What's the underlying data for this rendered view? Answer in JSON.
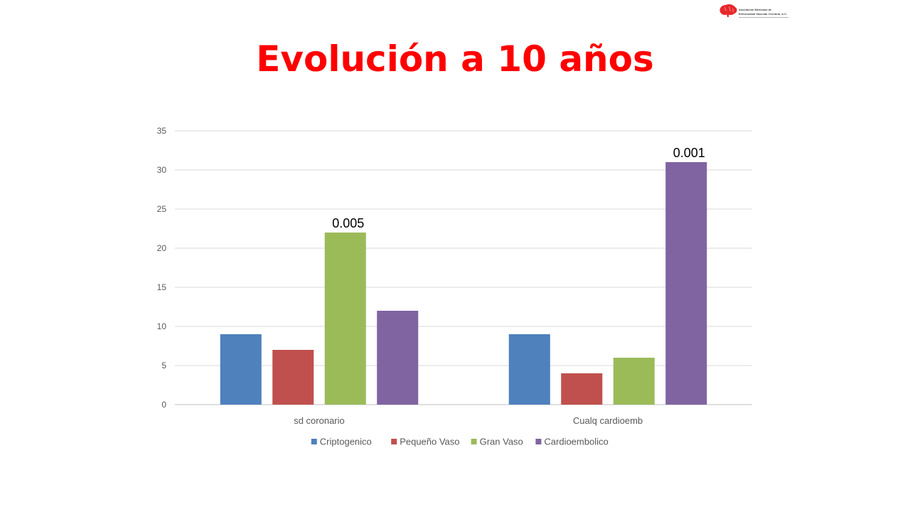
{
  "slide": {
    "title": "Evolución a 10 años",
    "title_color": "#ff0000"
  },
  "logo": {
    "icon": "brain-icon",
    "line1": "Asociación Mexicana de",
    "line2": "Enfermedad Vascular Cerebral, A.C.",
    "color": "#e8282b"
  },
  "chart_data": {
    "type": "bar",
    "title": "",
    "xlabel": "",
    "ylabel": "",
    "categories": [
      "sd coronario",
      "Cualq cardioemb"
    ],
    "series": [
      {
        "name": "Criptogenico",
        "values": [
          9,
          9
        ],
        "color": "#4f81bd"
      },
      {
        "name": "Pequeño Vaso",
        "values": [
          7,
          4
        ],
        "color": "#c0504d"
      },
      {
        "name": "Gran Vaso",
        "values": [
          22,
          6
        ],
        "color": "#9bbb59"
      },
      {
        "name": "Cardioembolico",
        "values": [
          12,
          31
        ],
        "color": "#8064a2"
      }
    ],
    "ylim": [
      0,
      35
    ],
    "yticks": [
      0,
      5,
      10,
      15,
      20,
      25,
      30,
      35
    ],
    "grid": true,
    "legend": "bottom",
    "annotations": [
      {
        "text": "0.005",
        "category": "sd coronario",
        "series": "Gran Vaso"
      },
      {
        "text": "0.001",
        "category": "Cualq cardioemb",
        "series": "Cardioembolico"
      }
    ]
  }
}
